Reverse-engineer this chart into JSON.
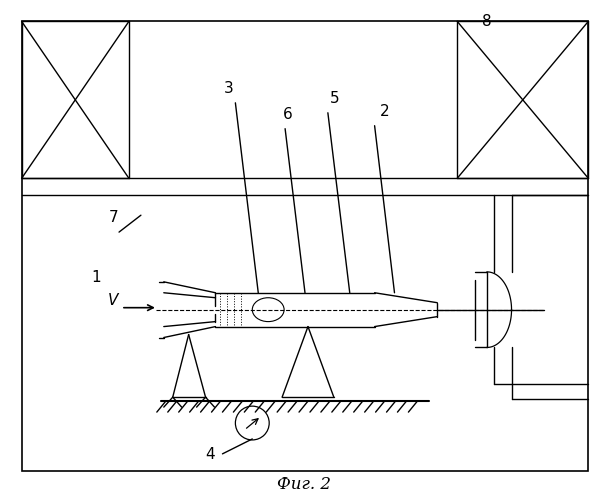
{
  "title": "Фиг. 2",
  "bg_color": "#ffffff",
  "line_color": "#000000",
  "fig_width": 6.08,
  "fig_height": 5.0,
  "dpi": 100
}
